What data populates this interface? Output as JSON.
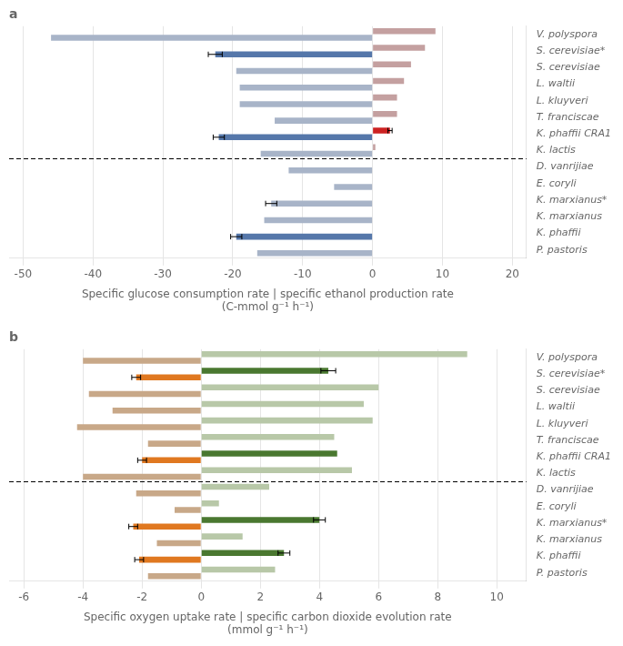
{
  "chart_data": [
    {
      "type": "bar",
      "orientation": "horizontal",
      "title": "a",
      "categories": [
        "V. polyspora",
        "S. cerevisiae*",
        "S. cerevisiae",
        "L. waltii",
        "L. kluyveri",
        "T. franciscae",
        "K. phaffii CRA1",
        "K. lactis",
        "D. vanrijiae",
        "E. coryli",
        "K. marxianus*",
        "K. marxianus",
        "K. phaffii",
        "P. pastoris"
      ],
      "series": [
        {
          "values": [
            9.0,
            7.5,
            5.5,
            4.5,
            3.5,
            3.5,
            2.5,
            0.4,
            0,
            0,
            0,
            0,
            0,
            0
          ],
          "errors": [
            0,
            0,
            0,
            0,
            0,
            0,
            0.3,
            0,
            0,
            0,
            0,
            0,
            0,
            0
          ],
          "colors": [
            "#c4a0a0",
            "#c4a0a0",
            "#c4a0a0",
            "#c4a0a0",
            "#c4a0a0",
            "#c4a0a0",
            "#cc2222",
            "#c4a0a0",
            "#c4a0a0",
            "#c4a0a0",
            "#c4a0a0",
            "#c4a0a0",
            "#c4a0a0",
            "#c4a0a0"
          ]
        },
        {
          "values": [
            -46.0,
            -22.5,
            -19.5,
            -19.0,
            -19.0,
            -14.0,
            -22.0,
            -16.0,
            -12.0,
            -5.5,
            -14.5,
            -15.5,
            -19.5,
            -16.5
          ],
          "errors": [
            0,
            1.0,
            0,
            0,
            0,
            0,
            0.8,
            0,
            0,
            0,
            0.8,
            0,
            0.8,
            0
          ],
          "colors": [
            "#a8b4c8",
            "#5577aa",
            "#a8b4c8",
            "#a8b4c8",
            "#a8b4c8",
            "#a8b4c8",
            "#5577aa",
            "#a8b4c8",
            "#a8b4c8",
            "#a8b4c8",
            "#a8b4c8",
            "#a8b4c8",
            "#5577aa",
            "#a8b4c8"
          ]
        }
      ],
      "xlim": [
        -52,
        22
      ],
      "xticks": [
        -50,
        -40,
        -30,
        -20,
        -10,
        0,
        10,
        20
      ],
      "xlabel": "Specific glucose consumption rate | specific ethanol production rate\n(C-mmol g⁻¹ h⁻¹)",
      "grid": true,
      "separator": {
        "after": "K. lactis",
        "line_style": "dashed"
      }
    },
    {
      "type": "bar",
      "orientation": "horizontal",
      "title": "b",
      "categories": [
        "V. polyspora",
        "S. cerevisiae*",
        "S. cerevisiae",
        "L. waltii",
        "L. kluyveri",
        "T. franciscae",
        "K. phaffii CRA1",
        "K. lactis",
        "D. vanrijiae",
        "E. coryli",
        "K. marxianus*",
        "K. marxianus",
        "K. phaffii",
        "P. pastoris"
      ],
      "series": [
        {
          "values": [
            9.0,
            4.3,
            6.0,
            5.5,
            5.8,
            4.5,
            4.6,
            5.1,
            2.3,
            0.6,
            4.0,
            1.4,
            2.8,
            2.5
          ],
          "errors": [
            0,
            0.25,
            0,
            0,
            0,
            0,
            0,
            0,
            0,
            0,
            0.2,
            0,
            0.2,
            0
          ],
          "colors": [
            "#b8c8a8",
            "#4a7830",
            "#b8c8a8",
            "#b8c8a8",
            "#b8c8a8",
            "#b8c8a8",
            "#4a7830",
            "#b8c8a8",
            "#b8c8a8",
            "#b8c8a8",
            "#4a7830",
            "#b8c8a8",
            "#4a7830",
            "#b8c8a8"
          ]
        },
        {
          "values": [
            -4.0,
            -2.2,
            -3.8,
            -3.0,
            -4.2,
            -1.8,
            -2.0,
            -4.0,
            -2.2,
            -0.9,
            -2.3,
            -1.5,
            -2.1,
            -1.8
          ],
          "errors": [
            0,
            0.15,
            0,
            0,
            0,
            0,
            0.15,
            0,
            0,
            0,
            0.15,
            0,
            0.15,
            0
          ],
          "colors": [
            "#c8a888",
            "#e07820",
            "#c8a888",
            "#c8a888",
            "#c8a888",
            "#c8a888",
            "#e07820",
            "#c8a888",
            "#c8a888",
            "#c8a888",
            "#e07820",
            "#c8a888",
            "#e07820",
            "#c8a888"
          ]
        }
      ],
      "xlim": [
        -6.5,
        11
      ],
      "xticks": [
        -6,
        -4,
        -2,
        0,
        2,
        4,
        6,
        8,
        10
      ],
      "xlabel": "Specific oxygen uptake rate | specific carbon dioxide evolution rate\n(mmol g⁻¹ h⁻¹)",
      "grid": true,
      "separator": {
        "after": "K. lactis",
        "line_style": "dashed"
      }
    }
  ]
}
